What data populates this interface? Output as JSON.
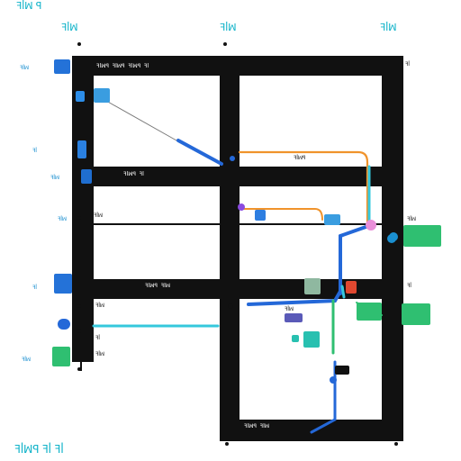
{
  "diagram": {
    "top_labels": [
      {
        "id": "tl-1",
        "text": "ꟻꟾꟽ ꟼ"
      },
      {
        "id": "tl-2",
        "text": "ꟻꟾꟽ"
      },
      {
        "id": "tl-3",
        "text": "ꟻꟾꟽ"
      },
      {
        "id": "tl-4",
        "text": "ꟻꟾꟽ"
      }
    ],
    "bottom_label": "ꟻꟾꟽꟼ ꟻꟾ ꟻꟾ",
    "bars": [
      {
        "id": "bar-top",
        "text": "ꟻꟾꟽꟼ ꟻꟾꟽꟼ ꟻꟾꟽꟼ ꟻꟾ"
      },
      {
        "id": "bar-mid",
        "text": "ꟻꟾꟽꟼ ꟻꟾ"
      },
      {
        "id": "bar-lower",
        "text": "ꟻꟾꟽꟼ ꟻꟾꟽ"
      },
      {
        "id": "bar-bottom",
        "text": "ꟻꟾꟽꟼ ꟻꟾꟽ"
      }
    ],
    "left_labels": [
      {
        "id": "ll-1",
        "text": "ꟻꟾꟽ"
      },
      {
        "id": "ll-2",
        "text": "ꟻꟾ"
      },
      {
        "id": "ll-3",
        "text": "ꟻꟾꟽ"
      },
      {
        "id": "ll-4",
        "text": "ꟻꟾꟽ"
      },
      {
        "id": "ll-5",
        "text": "ꟻꟾ"
      },
      {
        "id": "ll-6",
        "text": "ꟻꟾꟽ"
      },
      {
        "id": "ll-7",
        "text": "ꟻꟾꟽ"
      }
    ],
    "right_labels": [
      {
        "id": "rl-1",
        "text": "ꟻꟾ"
      },
      {
        "id": "rl-2",
        "text": "ꟻꟾꟽ"
      },
      {
        "id": "rl-3",
        "text": "ꟻꟾ"
      }
    ],
    "inner_labels": [
      {
        "id": "il-1",
        "text": "ꟻꟾꟽꟼ"
      },
      {
        "id": "il-2",
        "text": "ꟻꟾꟽ"
      },
      {
        "id": "il-3",
        "text": "ꟻꟾ"
      },
      {
        "id": "il-4",
        "text": "ꟻꟾꟽ"
      },
      {
        "id": "il-5",
        "text": "ꟻꟾꟽ"
      }
    ],
    "colors": {
      "grid": "#111111",
      "orange": "#f0932b",
      "blue": "#2468d8",
      "cyan": "#35c8dc",
      "green": "#2fbf71",
      "violet": "#8a4be0",
      "pink": "#e98fd9"
    }
  }
}
